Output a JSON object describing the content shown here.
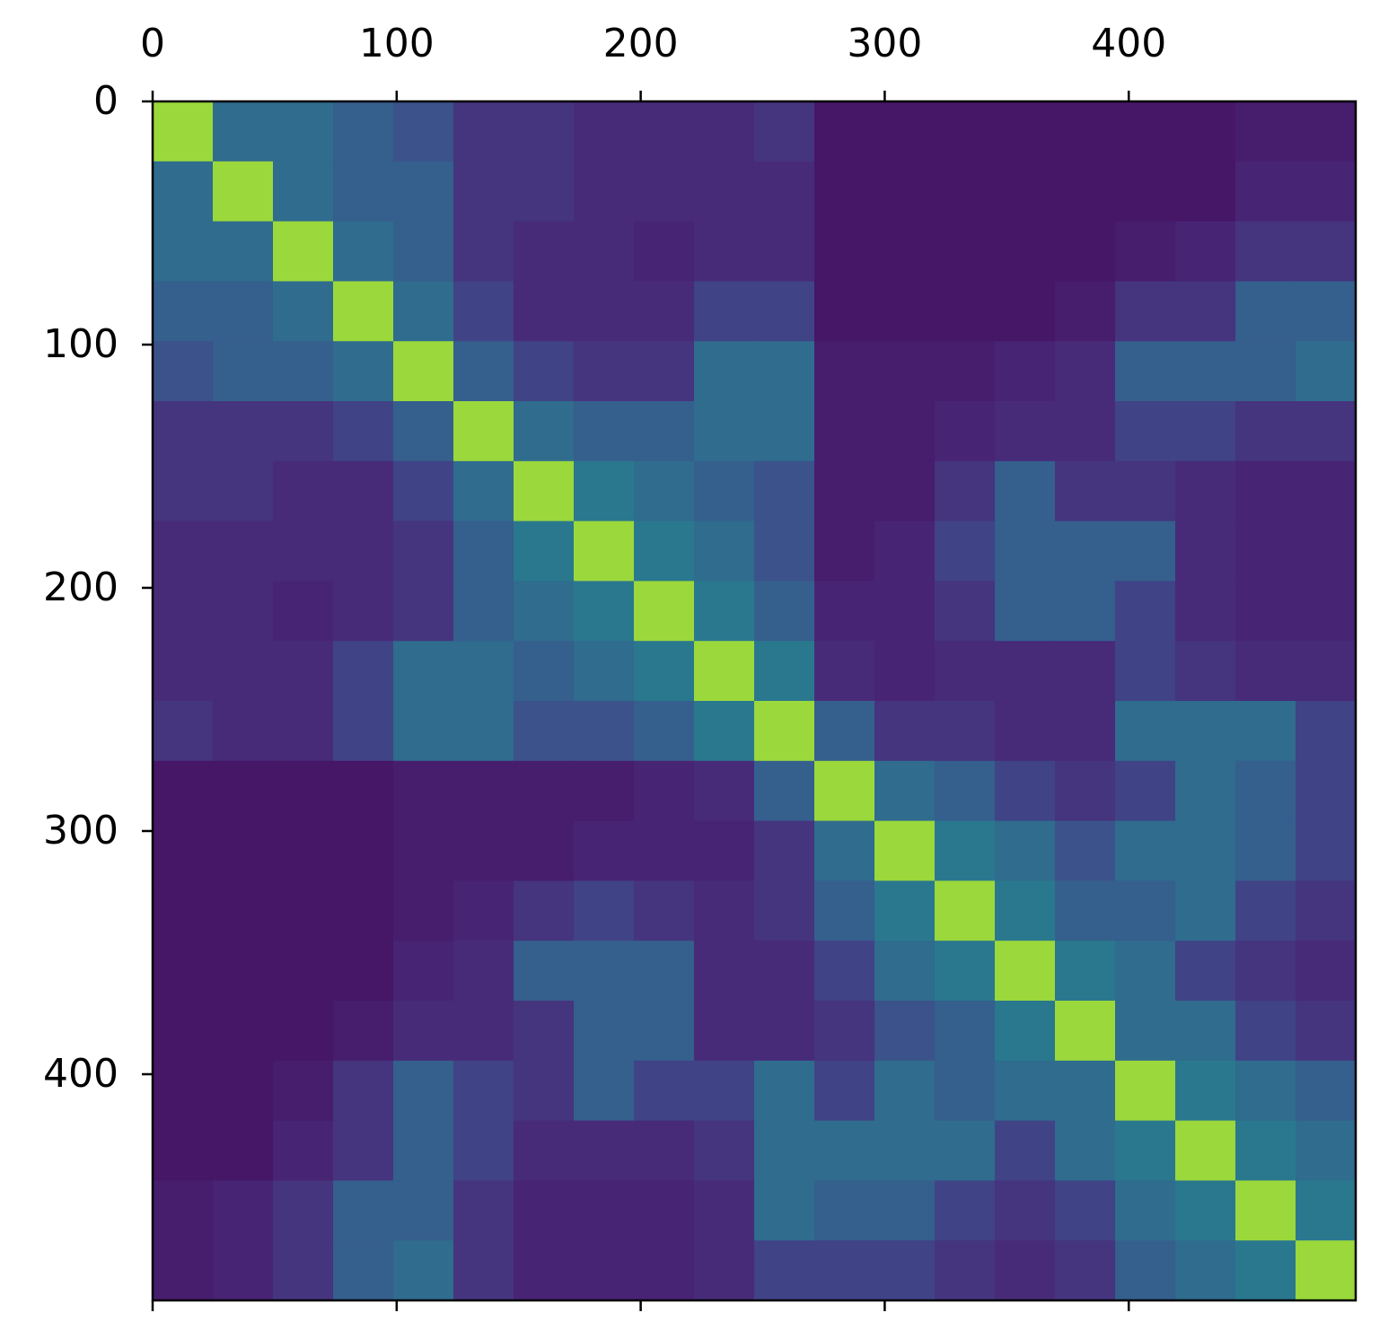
{
  "chart_data": {
    "type": "heatmap",
    "colormap": "viridis",
    "xlim": [
      0,
      493
    ],
    "ylim": [
      0,
      493
    ],
    "xticks": [
      0,
      100,
      200,
      300,
      400
    ],
    "yticks": [
      0,
      100,
      200,
      300,
      400
    ],
    "x_axis_position": "top",
    "y_inverted": true,
    "z": [
      [
        0.85,
        0.35,
        0.35,
        0.3,
        0.25,
        0.15,
        0.15,
        0.12,
        0.12,
        0.12,
        0.15,
        0.06,
        0.06,
        0.06,
        0.06,
        0.06,
        0.06,
        0.06,
        0.08,
        0.08
      ],
      [
        0.35,
        0.85,
        0.35,
        0.3,
        0.3,
        0.15,
        0.15,
        0.12,
        0.12,
        0.12,
        0.12,
        0.06,
        0.06,
        0.06,
        0.06,
        0.06,
        0.06,
        0.06,
        0.1,
        0.1
      ],
      [
        0.35,
        0.35,
        0.85,
        0.35,
        0.3,
        0.15,
        0.12,
        0.12,
        0.1,
        0.12,
        0.12,
        0.06,
        0.06,
        0.06,
        0.06,
        0.06,
        0.08,
        0.1,
        0.15,
        0.15
      ],
      [
        0.3,
        0.3,
        0.35,
        0.85,
        0.35,
        0.2,
        0.12,
        0.12,
        0.12,
        0.2,
        0.2,
        0.06,
        0.06,
        0.06,
        0.06,
        0.08,
        0.15,
        0.15,
        0.3,
        0.3
      ],
      [
        0.25,
        0.3,
        0.3,
        0.35,
        0.85,
        0.3,
        0.2,
        0.15,
        0.15,
        0.35,
        0.35,
        0.08,
        0.08,
        0.08,
        0.1,
        0.12,
        0.3,
        0.3,
        0.3,
        0.35
      ],
      [
        0.15,
        0.15,
        0.15,
        0.2,
        0.3,
        0.85,
        0.35,
        0.3,
        0.3,
        0.35,
        0.35,
        0.08,
        0.08,
        0.1,
        0.12,
        0.12,
        0.2,
        0.2,
        0.15,
        0.15
      ],
      [
        0.15,
        0.15,
        0.12,
        0.12,
        0.2,
        0.35,
        0.85,
        0.4,
        0.35,
        0.3,
        0.25,
        0.08,
        0.08,
        0.15,
        0.3,
        0.15,
        0.15,
        0.12,
        0.1,
        0.1
      ],
      [
        0.12,
        0.12,
        0.12,
        0.12,
        0.15,
        0.3,
        0.4,
        0.85,
        0.4,
        0.35,
        0.25,
        0.08,
        0.1,
        0.2,
        0.3,
        0.3,
        0.3,
        0.12,
        0.1,
        0.1
      ],
      [
        0.12,
        0.12,
        0.1,
        0.12,
        0.15,
        0.3,
        0.35,
        0.4,
        0.85,
        0.4,
        0.3,
        0.1,
        0.1,
        0.15,
        0.3,
        0.3,
        0.2,
        0.12,
        0.1,
        0.1
      ],
      [
        0.12,
        0.12,
        0.12,
        0.2,
        0.35,
        0.35,
        0.3,
        0.35,
        0.4,
        0.85,
        0.4,
        0.12,
        0.1,
        0.12,
        0.12,
        0.12,
        0.2,
        0.15,
        0.12,
        0.12
      ],
      [
        0.15,
        0.12,
        0.12,
        0.2,
        0.35,
        0.35,
        0.25,
        0.25,
        0.3,
        0.4,
        0.85,
        0.3,
        0.15,
        0.15,
        0.12,
        0.12,
        0.35,
        0.35,
        0.35,
        0.2
      ],
      [
        0.06,
        0.06,
        0.06,
        0.06,
        0.08,
        0.08,
        0.08,
        0.08,
        0.1,
        0.12,
        0.3,
        0.85,
        0.35,
        0.3,
        0.2,
        0.15,
        0.2,
        0.35,
        0.3,
        0.2
      ],
      [
        0.06,
        0.06,
        0.06,
        0.06,
        0.08,
        0.08,
        0.08,
        0.1,
        0.1,
        0.1,
        0.15,
        0.35,
        0.85,
        0.4,
        0.35,
        0.25,
        0.35,
        0.35,
        0.3,
        0.2
      ],
      [
        0.06,
        0.06,
        0.06,
        0.06,
        0.08,
        0.1,
        0.15,
        0.2,
        0.15,
        0.12,
        0.15,
        0.3,
        0.4,
        0.85,
        0.4,
        0.3,
        0.3,
        0.35,
        0.2,
        0.15
      ],
      [
        0.06,
        0.06,
        0.06,
        0.06,
        0.1,
        0.12,
        0.3,
        0.3,
        0.3,
        0.12,
        0.12,
        0.2,
        0.35,
        0.4,
        0.85,
        0.4,
        0.35,
        0.2,
        0.15,
        0.12
      ],
      [
        0.06,
        0.06,
        0.06,
        0.08,
        0.12,
        0.12,
        0.15,
        0.3,
        0.3,
        0.12,
        0.12,
        0.15,
        0.25,
        0.3,
        0.4,
        0.85,
        0.35,
        0.35,
        0.2,
        0.15
      ],
      [
        0.06,
        0.06,
        0.08,
        0.15,
        0.3,
        0.2,
        0.15,
        0.3,
        0.2,
        0.2,
        0.35,
        0.2,
        0.35,
        0.3,
        0.35,
        0.35,
        0.85,
        0.4,
        0.35,
        0.3
      ],
      [
        0.06,
        0.06,
        0.1,
        0.15,
        0.3,
        0.2,
        0.12,
        0.12,
        0.12,
        0.15,
        0.35,
        0.35,
        0.35,
        0.35,
        0.2,
        0.35,
        0.4,
        0.85,
        0.4,
        0.35
      ],
      [
        0.08,
        0.1,
        0.15,
        0.3,
        0.3,
        0.15,
        0.1,
        0.1,
        0.1,
        0.12,
        0.35,
        0.3,
        0.3,
        0.2,
        0.15,
        0.2,
        0.35,
        0.4,
        0.85,
        0.4
      ],
      [
        0.08,
        0.1,
        0.15,
        0.3,
        0.35,
        0.15,
        0.1,
        0.1,
        0.1,
        0.12,
        0.2,
        0.2,
        0.2,
        0.15,
        0.12,
        0.15,
        0.3,
        0.35,
        0.4,
        0.85
      ]
    ]
  }
}
